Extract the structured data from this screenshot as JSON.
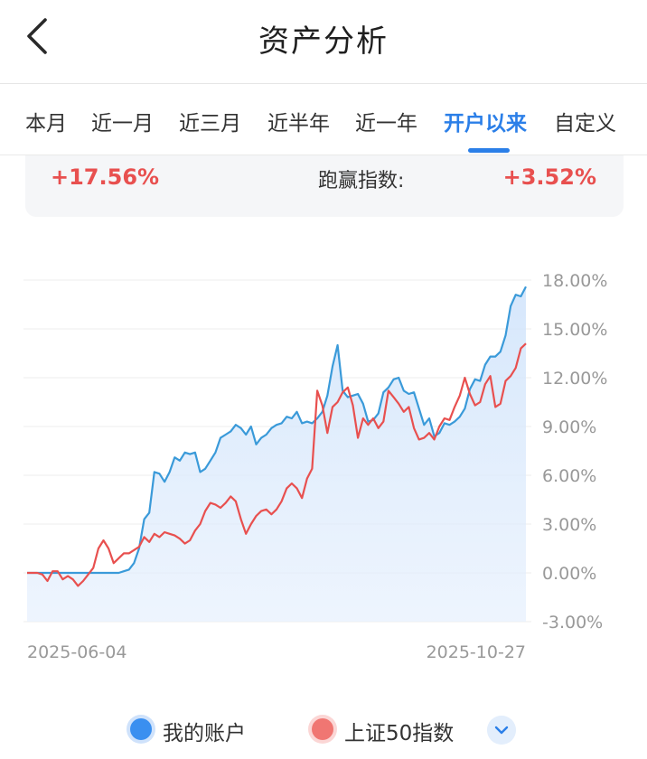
{
  "header": {
    "title": "资产分析"
  },
  "tabs": [
    {
      "label": "本月"
    },
    {
      "label": "近一月"
    },
    {
      "label": "近三月"
    },
    {
      "label": "近半年"
    },
    {
      "label": "近一年"
    },
    {
      "label": "开户以来",
      "active": true
    },
    {
      "label": "自定义"
    }
  ],
  "summary": {
    "return_value": "+17.56%",
    "excess_label": "跑赢指数:",
    "excess_value": "+3.52%"
  },
  "colors": {
    "account": "#3a9ad9",
    "index": "#e8504f",
    "accent": "#2b7fe8"
  },
  "chart_data": {
    "type": "line",
    "y_ticks": [
      "18.00%",
      "15.00%",
      "12.00%",
      "9.00%",
      "6.00%",
      "3.00%",
      "0.00%",
      "-3.00%"
    ],
    "ylim": [
      -3,
      18
    ],
    "grid": true,
    "x_labels": {
      "start": "2025-06-04",
      "end": "2025-10-27"
    },
    "series": [
      {
        "name": "我的账户",
        "color": "#3a9ad9",
        "area_fill": true,
        "values": [
          0,
          0,
          0,
          0,
          0,
          0,
          0,
          0,
          0,
          0,
          0,
          0,
          0,
          0,
          0,
          0,
          0,
          0,
          0,
          0.1,
          0.2,
          0.6,
          1.5,
          3.3,
          3.7,
          6.2,
          6.1,
          5.6,
          6.2,
          7.1,
          6.9,
          7.4,
          7.3,
          7.4,
          6.2,
          6.4,
          6.9,
          7.4,
          8.3,
          8.5,
          8.7,
          9.1,
          8.9,
          8.5,
          9.0,
          7.9,
          8.3,
          8.5,
          8.9,
          9.1,
          9.2,
          9.6,
          9.5,
          9.9,
          9.2,
          9.3,
          9.2,
          9.5,
          9.9,
          10.9,
          12.7,
          14.0,
          11.2,
          10.8,
          10.9,
          11.0,
          10.4,
          9.3,
          9.4,
          9.8,
          11.1,
          11.4,
          11.9,
          12.0,
          11.2,
          11.0,
          11.1,
          10.1,
          9.1,
          9.5,
          8.4,
          8.6,
          9.2,
          9.1,
          9.3,
          9.6,
          10.1,
          11.3,
          11.9,
          11.8,
          12.8,
          13.3,
          13.3,
          13.6,
          14.6,
          16.4,
          17.1,
          17.0,
          17.6
        ]
      },
      {
        "name": "上证50指数",
        "color": "#e8504f",
        "values": [
          0,
          0,
          0,
          -0.1,
          -0.5,
          0.1,
          0.1,
          -0.4,
          -0.2,
          -0.4,
          -0.8,
          -0.5,
          -0.1,
          0.3,
          1.5,
          2.0,
          1.5,
          0.6,
          0.9,
          1.2,
          1.2,
          1.4,
          1.6,
          2.2,
          1.9,
          2.4,
          2.2,
          2.5,
          2.4,
          2.3,
          2.1,
          1.8,
          2.0,
          2.6,
          3.0,
          3.8,
          4.3,
          4.2,
          4.0,
          4.3,
          4.7,
          4.4,
          3.3,
          2.4,
          3.0,
          3.5,
          3.8,
          3.9,
          3.6,
          3.9,
          4.4,
          5.2,
          5.5,
          5.2,
          4.6,
          5.8,
          6.4,
          11.2,
          10.3,
          8.6,
          10.2,
          10.5,
          11.1,
          11.4,
          10.3,
          8.3,
          9.5,
          9.1,
          9.5,
          8.9,
          9.3,
          11.2,
          10.8,
          10.4,
          9.9,
          10.2,
          8.9,
          8.2,
          8.3,
          8.6,
          8.2,
          9.0,
          9.5,
          9.4,
          10.2,
          10.9,
          12.0,
          11.0,
          10.3,
          10.5,
          11.6,
          12.1,
          10.2,
          10.4,
          11.8,
          12.1,
          12.6,
          13.8,
          14.1
        ]
      }
    ]
  }
}
